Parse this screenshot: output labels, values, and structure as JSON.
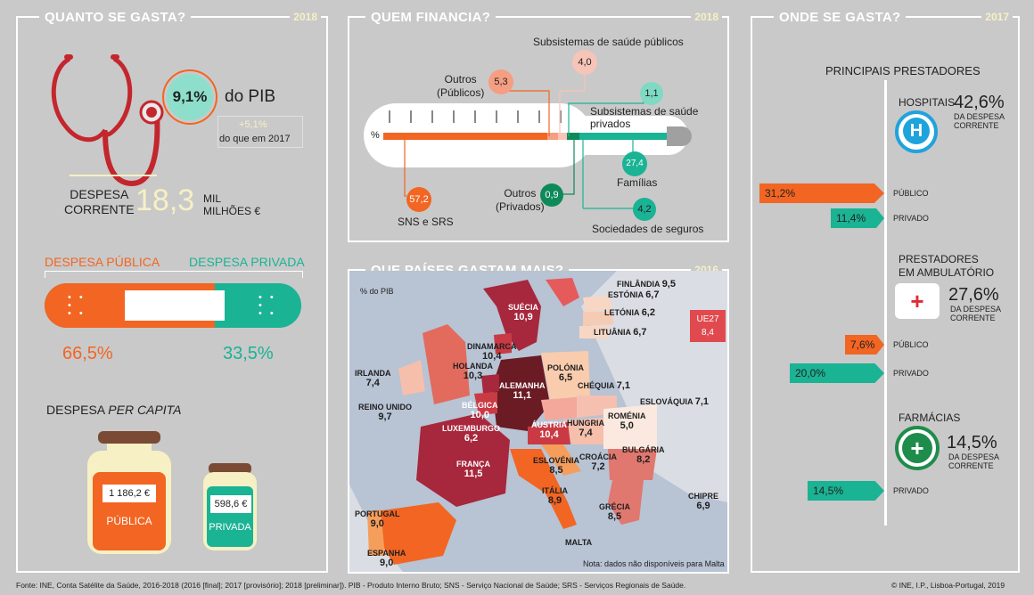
{
  "footer": {
    "source": "Fonte: INE, Conta Satélite da Saúde, 2016-2018 (2016 [final]; 2017 [provisório]; 2018 [preliminar]). PIB - Produto Interno Bruto; SNS - Serviço Nacional de Saúde; SRS - Serviços Regionais de Saúde.",
    "copyright": "© INE, I.P., Lisboa-Portugal, 2019"
  },
  "spend": {
    "title": "QUANTO SE GASTA?",
    "year": "2018",
    "pib_pct": "9,1%",
    "pib_label": "do PIB",
    "change": "+5,1%",
    "change_label": "do que em 2017",
    "despesa_label_1": "DESPESA",
    "despesa_label_2": "CORRENTE",
    "despesa_value": "18,3",
    "unit_1": "MIL",
    "unit_2": "MILHÕES €",
    "publica_label": "DESPESA PÚBLICA",
    "privada_label": "DESPESA PRIVADA",
    "publica_pct": "66,5%",
    "privada_pct": "33,5%",
    "publica_share": 0.665,
    "per_capita_1": "DESPESA ",
    "per_capita_2": "PER CAPITA",
    "publica_pc": "1 186,2 €",
    "publica_jar": "PÚBLICA",
    "privada_pc": "598,6 €",
    "privada_jar": "PRIVADA",
    "colors": {
      "orange": "#f26522",
      "teal": "#1ab394",
      "red": "#c4262e"
    }
  },
  "finance": {
    "title": "QUEM FINANCIA?",
    "year": "2018",
    "pct_symbol": "%",
    "items": [
      {
        "label": "SNS e SRS",
        "value": "57,2"
      },
      {
        "label_1": "Outros",
        "label_2": "(Públicos)",
        "value": "5,3"
      },
      {
        "label": "Subsistemas de saúde públicos",
        "value": "4,0"
      },
      {
        "label": "Subsistemas de saúde privados",
        "value": "1,1"
      },
      {
        "label_1": "Outros",
        "label_2": "(Privados)",
        "value": "0,9"
      },
      {
        "label": "Sociedades de seguros",
        "value": "4,2"
      },
      {
        "label": "Famílias",
        "value": "27,4"
      }
    ]
  },
  "map": {
    "title": "QUE PAÍSES GASTAM MAIS?",
    "year": "2016",
    "unit": "% do PIB",
    "eu_label": "UE27",
    "eu_value": "8,4",
    "note": "Nota: dados não disponíveis para Malta",
    "countries": [
      {
        "name": "FINLÂNDIA",
        "value": "9,5"
      },
      {
        "name": "ESTÓNIA",
        "value": "6,7"
      },
      {
        "name": "LETÓNIA",
        "value": "6,2"
      },
      {
        "name": "LITUÂNIA",
        "value": "6,7"
      },
      {
        "name": "SUÉCIA",
        "value": "10,9"
      },
      {
        "name": "DINAMARCA",
        "value": "10,4"
      },
      {
        "name": "HOLANDA",
        "value": "10,3"
      },
      {
        "name": "IRLANDA",
        "value": "7,4"
      },
      {
        "name": "REINO UNIDO",
        "value": "9,7"
      },
      {
        "name": "BÉLGICA",
        "value": "10,0"
      },
      {
        "name": "ALEMANHA",
        "value": "11,1"
      },
      {
        "name": "POLÓNIA",
        "value": "6,5"
      },
      {
        "name": "CHÉQUIA",
        "value": "7,1"
      },
      {
        "name": "ESLOVÁQUIA",
        "value": "7,1"
      },
      {
        "name": "ROMÉNIA",
        "value": "5,0"
      },
      {
        "name": "HUNGRIA",
        "value": "7,4"
      },
      {
        "name": "ÁUSTRIA",
        "value": "10,4"
      },
      {
        "name": "LUXEMBURGO",
        "value": "6,2"
      },
      {
        "name": "FRANÇA",
        "value": "11,5"
      },
      {
        "name": "ESLOVÉNIA",
        "value": "8,5"
      },
      {
        "name": "CROÁCIA",
        "value": "7,2"
      },
      {
        "name": "BULGÁRIA",
        "value": "8,2"
      },
      {
        "name": "ITÁLIA",
        "value": "8,9"
      },
      {
        "name": "GRÉCIA",
        "value": "8,5"
      },
      {
        "name": "CHIPRE",
        "value": "6,9"
      },
      {
        "name": "PORTUGAL",
        "value": "9,0"
      },
      {
        "name": "ESPANHA",
        "value": "9,0"
      },
      {
        "name": "MALTA",
        "value": ""
      }
    ]
  },
  "where": {
    "title": "ONDE SE GASTA?",
    "year": "2017",
    "header": "PRINCIPAIS PRESTADORES",
    "share_label_1": "DA DESPESA",
    "share_label_2": "CORRENTE",
    "publico": "PÚBLICO",
    "privado": "PRIVADO",
    "hospitais": {
      "label": "HOSPITAIS",
      "share": "42,6%",
      "publico": "31,2%",
      "privado": "11,4%"
    },
    "ambulatorio": {
      "label_1": "PRESTADORES",
      "label_2": "EM AMBULATÓRIO",
      "share": "27,6%",
      "publico": "7,6%",
      "privado": "20,0%"
    },
    "farmacias": {
      "label": "FARMÁCIAS",
      "share": "14,5%",
      "privado": "14,5%"
    }
  }
}
